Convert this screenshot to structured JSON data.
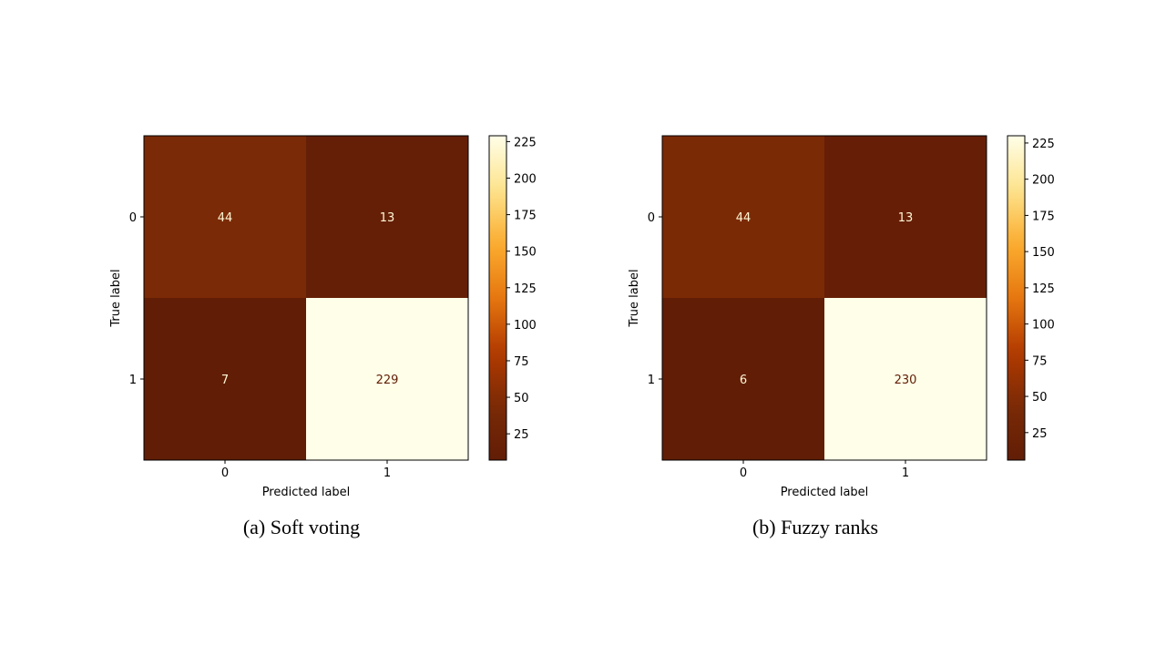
{
  "chart_data": [
    {
      "type": "heatmap",
      "caption": "(a) Soft voting",
      "xlabel": "Predicted label",
      "ylabel": "True label",
      "x_categories": [
        "0",
        "1"
      ],
      "y_categories": [
        "0",
        "1"
      ],
      "matrix": [
        [
          44,
          13
        ],
        [
          7,
          229
        ]
      ],
      "colorbar": {
        "range": [
          7,
          229
        ],
        "ticks": [
          25,
          50,
          75,
          100,
          125,
          150,
          175,
          200,
          225
        ],
        "colormap": "afmhot"
      }
    },
    {
      "type": "heatmap",
      "caption": "(b) Fuzzy ranks",
      "xlabel": "Predicted label",
      "ylabel": "True label",
      "x_categories": [
        "0",
        "1"
      ],
      "y_categories": [
        "0",
        "1"
      ],
      "matrix": [
        [
          44,
          13
        ],
        [
          6,
          230
        ]
      ],
      "colorbar": {
        "range": [
          6,
          230
        ],
        "ticks": [
          25,
          50,
          75,
          100,
          125,
          150,
          175,
          200,
          225
        ],
        "colormap": "afmhot"
      }
    }
  ],
  "colors": {
    "colormap_stops": [
      "#611d06",
      "#7a2a06",
      "#b23a00",
      "#e67710",
      "#fbac2f",
      "#fde38d",
      "#fffee8"
    ]
  }
}
